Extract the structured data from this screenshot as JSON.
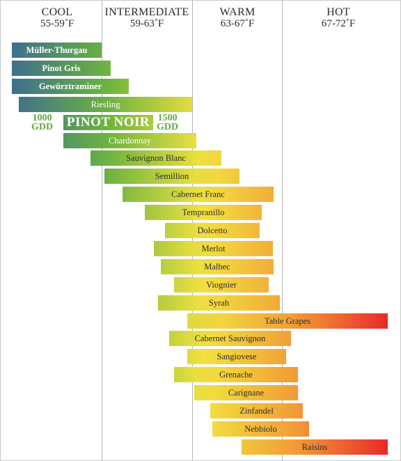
{
  "chart_data": {
    "type": "range-bar",
    "zones": [
      {
        "name": "COOL",
        "temp": "55-59˚F"
      },
      {
        "name": "INTERMEDIATE",
        "temp": "59-63˚F"
      },
      {
        "name": "WARM",
        "temp": "63-67˚F"
      },
      {
        "name": "HOT",
        "temp": "67-72˚F"
      }
    ],
    "x_range_f": [
      55,
      72
    ],
    "gdd_labels": {
      "low": "1000\nGDD",
      "high": "1500\nGDD"
    },
    "bars": [
      {
        "label": "Müller-Thurgau",
        "start": 55.0,
        "end": 59.0
      },
      {
        "label": "Pinot Gris",
        "start": 55.0,
        "end": 59.4
      },
      {
        "label": "Gewürztraminer",
        "start": 55.0,
        "end": 60.2
      },
      {
        "label": "Riesling",
        "start": 55.3,
        "end": 63.0
      },
      {
        "label": "PINOT NOIR",
        "start": 57.3,
        "end": 61.3
      },
      {
        "label": "Chardonnay",
        "start": 57.3,
        "end": 63.2
      },
      {
        "label": "Sauvignon Blanc",
        "start": 58.5,
        "end": 64.3
      },
      {
        "label": "Semillion",
        "start": 59.1,
        "end": 65.1
      },
      {
        "label": "Cabernet Franc",
        "start": 59.9,
        "end": 66.6
      },
      {
        "label": "Tempranillo",
        "start": 60.9,
        "end": 66.1
      },
      {
        "label": "Dolcetto",
        "start": 61.8,
        "end": 66.0
      },
      {
        "label": "Merlot",
        "start": 61.3,
        "end": 66.6
      },
      {
        "label": "Malbec",
        "start": 61.6,
        "end": 66.6
      },
      {
        "label": "Viognier",
        "start": 62.2,
        "end": 66.4
      },
      {
        "label": "Syrah",
        "start": 61.5,
        "end": 66.9
      },
      {
        "label": "Table Grapes",
        "start": 62.8,
        "end": 71.7
      },
      {
        "label": "Cabernet Sauvignon",
        "start": 62.0,
        "end": 67.4
      },
      {
        "label": "Sangiovese",
        "start": 62.8,
        "end": 67.2
      },
      {
        "label": "Grenache",
        "start": 62.2,
        "end": 67.7
      },
      {
        "label": "Carignane",
        "start": 63.1,
        "end": 67.7
      },
      {
        "label": "Zinfandel",
        "start": 63.8,
        "end": 67.9
      },
      {
        "label": "Nebbiolo",
        "start": 63.9,
        "end": 68.2
      },
      {
        "label": "Raisins",
        "start": 65.2,
        "end": 71.7
      }
    ],
    "gradient_colors": [
      "#3d6f8e",
      "#6cb33f",
      "#f3e241",
      "#f19a35",
      "#e8202a"
    ],
    "grid_lines": true,
    "legend": "none"
  }
}
